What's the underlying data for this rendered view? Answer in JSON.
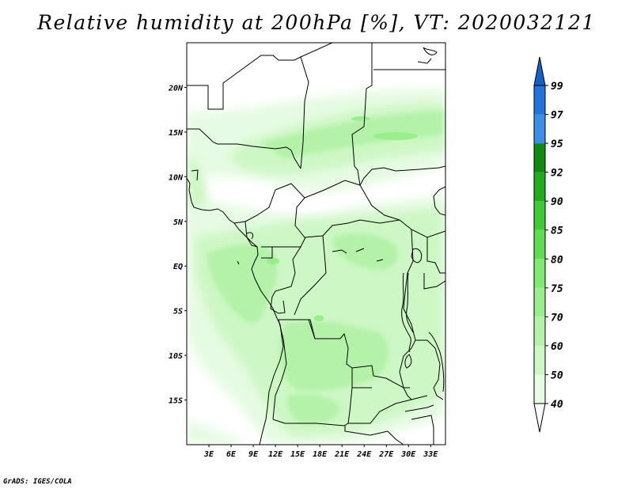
{
  "title": "Relative humidity at 200hPa [%], VT: 2020032121",
  "credit": "GrADS: IGES/COLA",
  "map": {
    "lon_range": [
      0,
      35
    ],
    "lat_range": [
      -20,
      25
    ],
    "lat_ticks": [
      {
        "value": 20,
        "label": "20N"
      },
      {
        "value": 15,
        "label": "15N"
      },
      {
        "value": 10,
        "label": "10N"
      },
      {
        "value": 5,
        "label": "5N"
      },
      {
        "value": 0,
        "label": "EQ"
      },
      {
        "value": -5,
        "label": "5S"
      },
      {
        "value": -10,
        "label": "10S"
      },
      {
        "value": -15,
        "label": "15S"
      }
    ],
    "lon_ticks": [
      {
        "value": 3,
        "label": "3E"
      },
      {
        "value": 6,
        "label": "6E"
      },
      {
        "value": 9,
        "label": "9E"
      },
      {
        "value": 12,
        "label": "12E"
      },
      {
        "value": 15,
        "label": "15E"
      },
      {
        "value": 18,
        "label": "18E"
      },
      {
        "value": 21,
        "label": "21E"
      },
      {
        "value": 24,
        "label": "24E"
      },
      {
        "value": 27,
        "label": "27E"
      },
      {
        "value": 30,
        "label": "30E"
      },
      {
        "value": 33,
        "label": "33E"
      }
    ]
  },
  "colorbar": {
    "levels": [
      {
        "label": "40",
        "color": "#e6fbe3"
      },
      {
        "label": "50",
        "color": "#cdf7c4"
      },
      {
        "label": "60",
        "color": "#b3f2a8"
      },
      {
        "label": "70",
        "color": "#9aee8c"
      },
      {
        "label": "75",
        "color": "#80e972"
      },
      {
        "label": "80",
        "color": "#5fdd52"
      },
      {
        "label": "85",
        "color": "#3ecb35"
      },
      {
        "label": "90",
        "color": "#22ab1e"
      },
      {
        "label": "92",
        "color": "#118a14"
      },
      {
        "label": "95",
        "color": "#3b8fe8"
      },
      {
        "label": "97",
        "color": "#2274dc"
      },
      {
        "label": "99",
        "color": "#1560c6"
      }
    ]
  }
}
